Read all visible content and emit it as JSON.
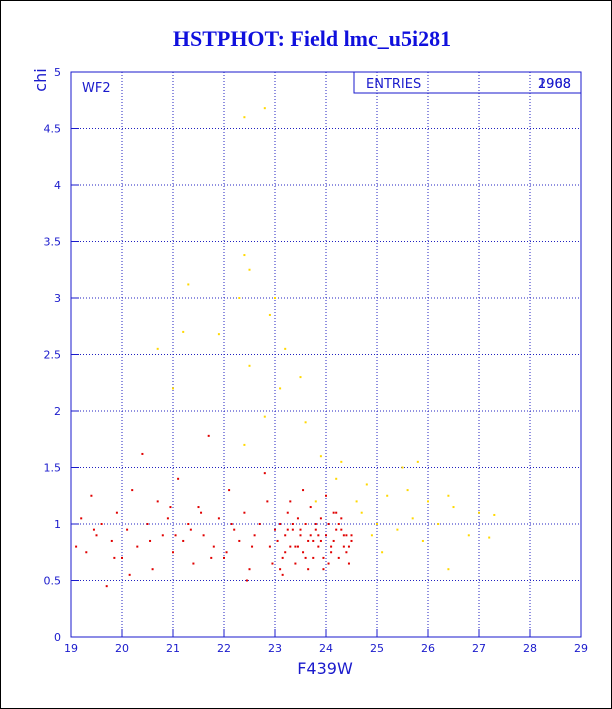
{
  "chart_data": {
    "type": "scatter",
    "title": "HSTPHOT: Field lmc_u5i281",
    "xlabel": "F439W",
    "ylabel": "chi",
    "panel_label": "WF2",
    "stats": {
      "label": "ENTRIES",
      "values": [
        "2908",
        "1968"
      ]
    },
    "xlim": [
      19,
      29
    ],
    "ylim": [
      0,
      5
    ],
    "xticks": [
      19,
      20,
      21,
      22,
      23,
      24,
      25,
      26,
      27,
      28,
      29
    ],
    "yticks": [
      0,
      0.5,
      1,
      1.5,
      2,
      2.5,
      3,
      3.5,
      4,
      4.5,
      5
    ],
    "grid": true,
    "series": [
      {
        "color": "#e00000",
        "x": [
          19.1,
          19.2,
          19.3,
          19.4,
          19.5,
          19.6,
          19.7,
          19.8,
          19.9,
          20.0,
          20.1,
          20.2,
          20.3,
          20.4,
          20.5,
          20.6,
          20.7,
          20.8,
          20.9,
          21.0,
          21.1,
          21.2,
          21.3,
          21.4,
          21.5,
          21.6,
          21.7,
          21.8,
          21.9,
          22.0,
          22.1,
          22.2,
          22.3,
          22.4,
          22.5,
          22.6,
          22.7,
          22.8,
          22.9,
          23.0,
          23.05,
          23.1,
          23.15,
          23.2,
          23.25,
          23.3,
          23.35,
          23.4,
          23.45,
          23.5,
          23.55,
          23.6,
          23.65,
          23.7,
          23.75,
          23.8,
          23.85,
          23.9,
          23.95,
          24.0,
          24.05,
          24.1,
          24.15,
          24.2,
          24.25,
          24.3,
          24.35,
          24.4,
          24.45,
          24.5,
          23.1,
          23.2,
          23.3,
          23.4,
          23.5,
          23.6,
          23.7,
          23.8,
          23.9,
          24.0,
          24.1,
          24.2,
          24.3,
          24.4,
          24.5,
          23.15,
          23.35,
          23.55,
          23.75,
          23.95,
          24.15,
          24.35,
          23.25,
          23.45,
          23.65,
          23.85,
          24.05,
          24.25,
          24.45,
          20.15,
          20.55,
          20.95,
          21.35,
          21.75,
          22.15,
          22.55,
          22.95,
          21.05,
          21.55,
          22.05,
          22.45,
          22.85,
          19.45,
          19.85
        ],
        "y": [
          0.8,
          1.05,
          0.75,
          1.25,
          0.9,
          1.0,
          0.45,
          0.85,
          1.1,
          0.7,
          0.95,
          1.3,
          0.8,
          1.62,
          1.0,
          0.6,
          1.2,
          0.9,
          1.05,
          0.75,
          1.4,
          0.85,
          1.0,
          0.65,
          1.15,
          0.9,
          1.78,
          0.8,
          1.05,
          0.7,
          1.3,
          0.95,
          0.85,
          1.1,
          0.6,
          0.9,
          1.0,
          1.45,
          0.8,
          0.95,
          0.85,
          1.0,
          0.7,
          0.9,
          1.1,
          0.8,
          0.95,
          0.65,
          1.05,
          0.9,
          0.75,
          1.0,
          0.85,
          1.15,
          0.7,
          0.95,
          0.8,
          1.05,
          0.6,
          0.9,
          1.0,
          0.75,
          0.85,
          1.1,
          0.7,
          0.95,
          0.8,
          0.9,
          0.65,
          0.85,
          0.6,
          0.75,
          1.2,
          0.8,
          0.95,
          0.7,
          0.9,
          1.0,
          0.85,
          1.25,
          0.8,
          0.95,
          1.05,
          0.75,
          0.9,
          0.55,
          1.0,
          1.3,
          0.85,
          0.7,
          1.1,
          0.9,
          0.95,
          0.8,
          0.6,
          0.9,
          0.65,
          1.0,
          0.8,
          0.55,
          0.85,
          1.15,
          0.95,
          0.7,
          1.0,
          0.8,
          0.65,
          0.9,
          1.1,
          0.75,
          0.5,
          1.2,
          0.95,
          0.7
        ]
      },
      {
        "color": "#ffd800",
        "x": [
          22.4,
          22.8,
          22.4,
          22.5,
          21.3,
          22.3,
          23.0,
          21.2,
          21.9,
          22.9,
          20.7,
          23.2,
          22.5,
          21.0,
          23.1,
          23.5,
          22.8,
          23.6,
          22.4,
          23.9,
          24.3,
          25.5,
          25.8,
          24.8,
          25.2,
          25.6,
          26.0,
          26.5,
          27.0,
          27.3,
          26.4,
          24.7,
          25.0,
          25.4,
          25.9,
          26.2,
          26.8,
          26.4,
          25.1,
          24.9,
          24.6,
          24.2,
          23.8,
          25.7,
          27.2
        ],
        "y": [
          4.6,
          4.68,
          3.38,
          3.25,
          3.12,
          3.0,
          3.0,
          2.7,
          2.68,
          2.85,
          2.55,
          2.55,
          2.4,
          2.2,
          2.2,
          2.3,
          1.95,
          1.9,
          1.7,
          1.6,
          1.55,
          1.5,
          1.55,
          1.35,
          1.25,
          1.3,
          1.2,
          1.15,
          1.1,
          1.08,
          1.25,
          1.1,
          1.0,
          0.95,
          0.85,
          1.0,
          0.9,
          0.6,
          0.75,
          0.9,
          1.2,
          1.4,
          1.2,
          1.05,
          0.88
        ]
      }
    ]
  }
}
